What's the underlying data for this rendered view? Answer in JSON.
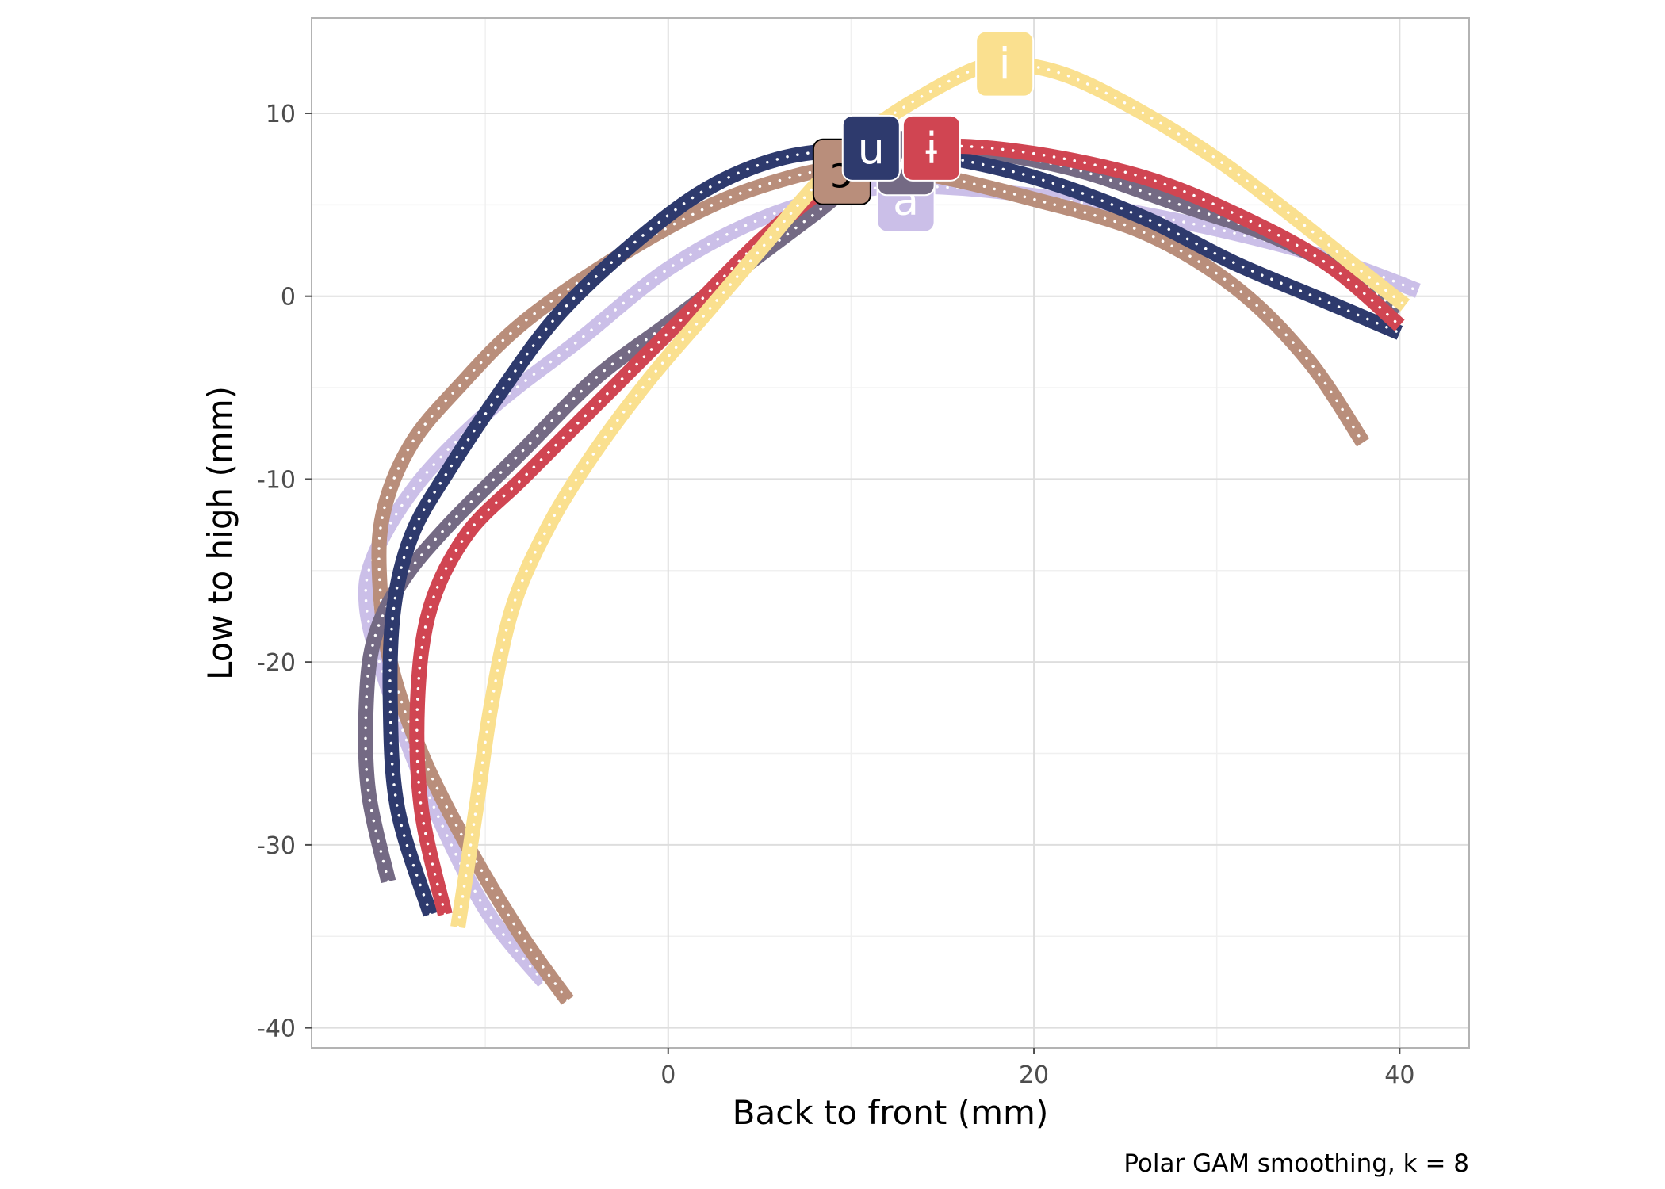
{
  "chart_data": {
    "type": "line",
    "title": "",
    "xlabel": "Back to front (mm)",
    "ylabel": "Low to high (mm)",
    "caption": "Polar GAM smoothing, k = 8",
    "xlim": [
      -19.5,
      43.8
    ],
    "ylim": [
      -41.1,
      15.2
    ],
    "xticks": [
      0,
      20,
      40
    ],
    "xtick_labels": [
      "0",
      "20",
      "40"
    ],
    "yticks": [
      -40,
      -30,
      -20,
      -10,
      0,
      10
    ],
    "ytick_labels": [
      "-40",
      "-30",
      "-20",
      "-10",
      "0",
      "10"
    ],
    "xticks_minor": [
      -10,
      10,
      30
    ],
    "yticks_minor": [
      -35,
      -25,
      -15,
      -5,
      5
    ],
    "grid": true,
    "legend": "none",
    "series": [
      {
        "name": "a",
        "color": "#cbbfe8",
        "x": [
          -6.8,
          -10,
          -13,
          -15.3,
          -16.5,
          -16,
          -13.5,
          -9.5,
          -5,
          0,
          5,
          10,
          14,
          20,
          26,
          32,
          37,
          41
        ],
        "y": [
          -37.5,
          -33.5,
          -27.5,
          -21.5,
          -17,
          -14,
          -10,
          -6,
          -2.5,
          1.5,
          4.2,
          5.7,
          6,
          5.5,
          4.5,
          3.2,
          1.8,
          0.3
        ],
        "label_x": 13,
        "label_y": 5.3
      },
      {
        "name": "ɔ",
        "color": "#b98e7b",
        "x": [
          -5.5,
          -8,
          -11,
          -13.5,
          -15.2,
          -15.8,
          -15.5,
          -14,
          -11.5,
          -8,
          -3,
          2,
          6,
          9.5,
          14,
          20,
          26,
          31,
          35,
          38
        ],
        "y": [
          -38.5,
          -35,
          -30,
          -25,
          -20,
          -15,
          -11.5,
          -8,
          -5,
          -1.5,
          2,
          4.8,
          6.3,
          7,
          6.7,
          5.3,
          3.5,
          0.5,
          -3.5,
          -8
        ],
        "label_x": 9.5,
        "label_y": 6.8
      },
      {
        "name": "ʌ",
        "color": "#746a84",
        "x": [
          -15.3,
          -16.4,
          -16.5,
          -16,
          -14.5,
          -12,
          -8,
          -4,
          0,
          4,
          8,
          12,
          16,
          22,
          28,
          33,
          37,
          40
        ],
        "y": [
          -32,
          -27,
          -22,
          -18.5,
          -15.5,
          -12.5,
          -8.5,
          -4.5,
          -1.5,
          1.5,
          4.5,
          7.5,
          8,
          7,
          5,
          3.3,
          1.3,
          -0.8
        ],
        "label_x": 13,
        "label_y": 7.3
      },
      {
        "name": "u",
        "color": "#2e3a6d",
        "x": [
          -13,
          -14.8,
          -15.2,
          -15,
          -14,
          -12,
          -9,
          -6,
          -2,
          2,
          6,
          10,
          14,
          20,
          26,
          31,
          36,
          40
        ],
        "y": [
          -33.8,
          -28,
          -22,
          -17,
          -13,
          -9.5,
          -5,
          -1,
          2.8,
          5.8,
          7.5,
          8,
          7.8,
          6.5,
          4.3,
          1.8,
          -0.3,
          -2
        ],
        "label_x": 11.1,
        "label_y": 8.1
      },
      {
        "name": "ɨ",
        "color": "#d04552",
        "x": [
          -12.2,
          -13.5,
          -13.7,
          -13,
          -11,
          -8,
          -5,
          -1,
          2,
          5,
          8,
          11,
          15,
          20,
          26,
          31,
          36,
          40
        ],
        "y": [
          -33.8,
          -28,
          -22,
          -17,
          -13,
          -10,
          -7,
          -3,
          0,
          3,
          5.5,
          7.5,
          8.2,
          7.8,
          6.5,
          4.5,
          1.8,
          -1.6
        ],
        "label_x": 14.4,
        "label_y": 8.1
      },
      {
        "name": "i",
        "color": "#fae08f",
        "x": [
          -11.5,
          -10.5,
          -9.7,
          -8.5,
          -6.5,
          -4,
          -1,
          2,
          5,
          8,
          11,
          14,
          17,
          19,
          22,
          26,
          30,
          34,
          38,
          40.3
        ],
        "y": [
          -34.5,
          -28,
          -22.5,
          -17,
          -12.5,
          -8.5,
          -4.5,
          -1,
          2.5,
          6,
          9,
          11,
          12.5,
          12.7,
          12,
          10,
          7.5,
          4.5,
          1.3,
          -0.5
        ],
        "label_x": 18.4,
        "label_y": 12.7
      }
    ]
  }
}
